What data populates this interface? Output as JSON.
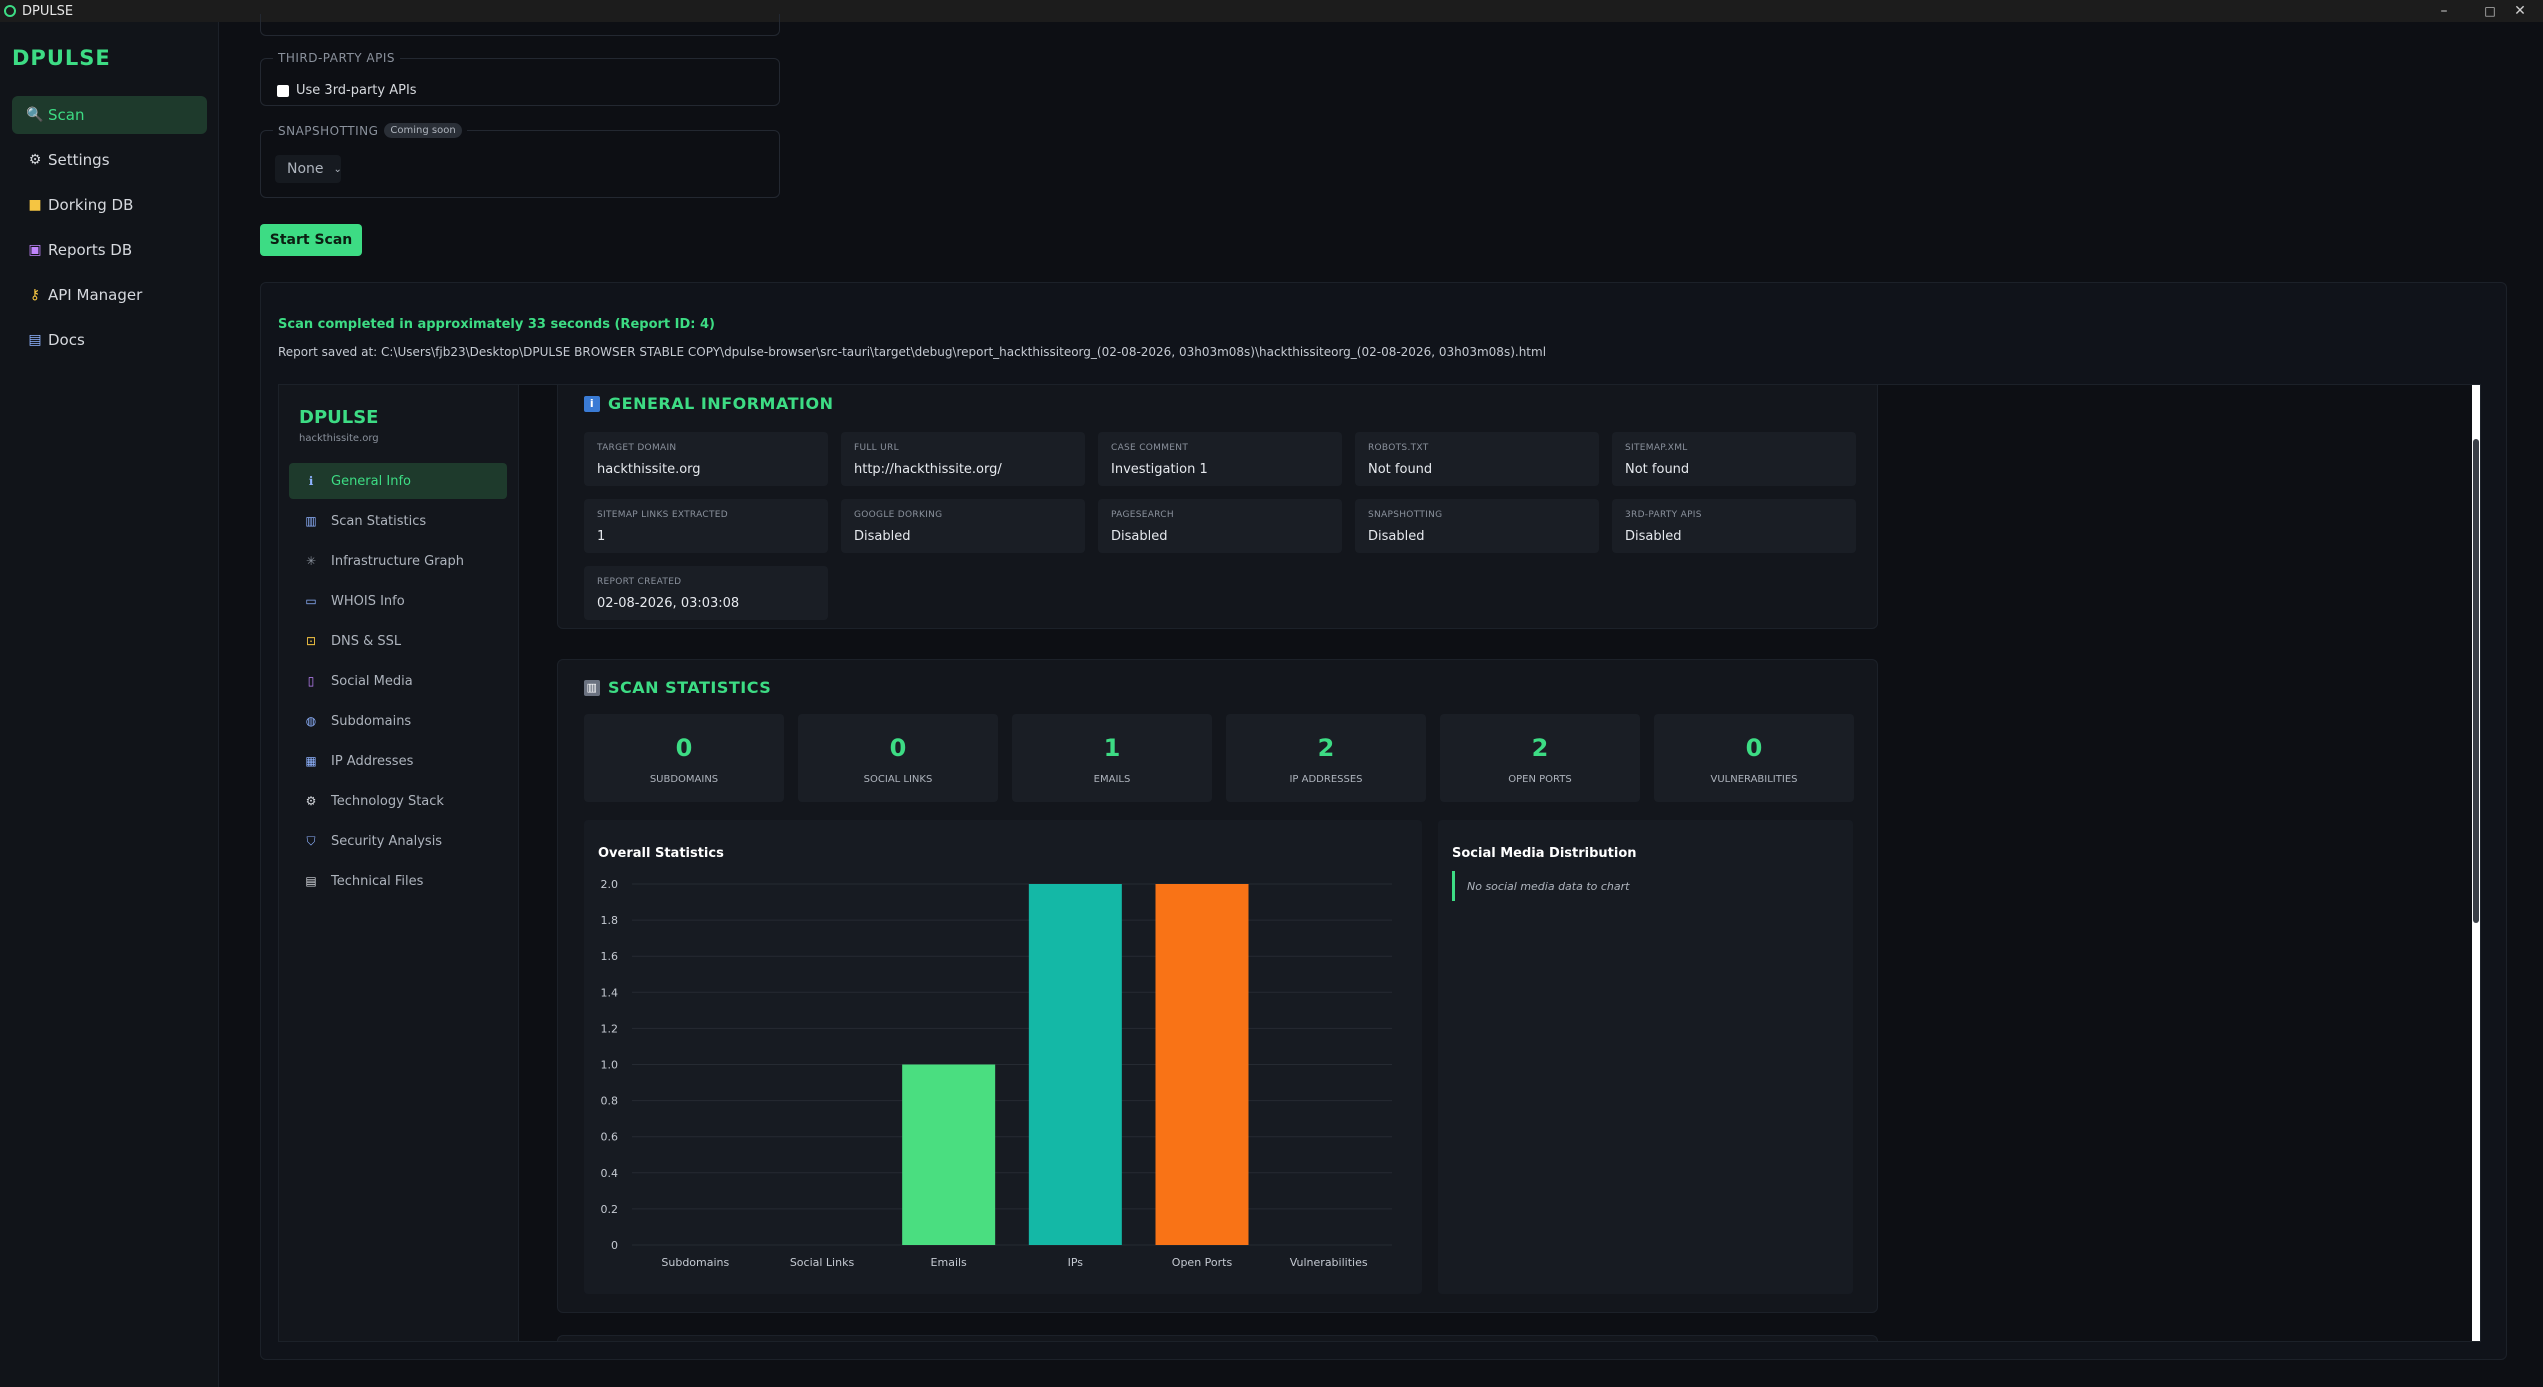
{
  "window": {
    "title": "DPULSE",
    "minimize": "–",
    "maximize": "□",
    "close": "✕"
  },
  "sidebar": {
    "brand": "DPULSE",
    "items": [
      {
        "label": "Scan",
        "icon": "magnifier-icon",
        "active": true
      },
      {
        "label": "Settings",
        "icon": "gear-icon"
      },
      {
        "label": "Dorking DB",
        "icon": "folder-icon"
      },
      {
        "label": "Reports DB",
        "icon": "floppy-icon"
      },
      {
        "label": "API Manager",
        "icon": "key-icon"
      },
      {
        "label": "Docs",
        "icon": "book-icon"
      }
    ]
  },
  "form": {
    "third_party_legend": "THIRD-PARTY APIS",
    "third_party_checkbox": "Use 3rd-party APIs",
    "snapshot_legend": "SNAPSHOTTING",
    "snapshot_badge": "Coming soon",
    "snapshot_value": "None",
    "start_button": "Start Scan"
  },
  "result": {
    "status": "Scan completed in approximately 33 seconds (Report ID: 4)",
    "path": "Report saved at: C:\\Users\\fjb23\\Desktop\\DPULSE BROWSER STABLE COPY\\dpulse-browser\\src-tauri\\target\\debug\\report_hackthissiteorg_(02-08-2026, 03h03m08s)\\hackthissiteorg_(02-08-2026, 03h03m08s).html"
  },
  "report": {
    "brand": "DPULSE",
    "domain": "hackthissite.org",
    "nav": [
      {
        "label": "General Info",
        "icon": "info-icon",
        "active": true
      },
      {
        "label": "Scan Statistics",
        "icon": "chart-icon"
      },
      {
        "label": "Infrastructure Graph",
        "icon": "network-icon"
      },
      {
        "label": "WHOIS Info",
        "icon": "id-card-icon"
      },
      {
        "label": "DNS & SSL",
        "icon": "lock-icon"
      },
      {
        "label": "Social Media",
        "icon": "phone-icon"
      },
      {
        "label": "Subdomains",
        "icon": "globe-icon"
      },
      {
        "label": "IP Addresses",
        "icon": "numbers-icon"
      },
      {
        "label": "Technology Stack",
        "icon": "gear-icon"
      },
      {
        "label": "Security Analysis",
        "icon": "shield-icon"
      },
      {
        "label": "Technical Files",
        "icon": "document-icon"
      }
    ],
    "general": {
      "title": "GENERAL INFORMATION",
      "cards": [
        {
          "label": "TARGET DOMAIN",
          "value": "hackthissite.org"
        },
        {
          "label": "FULL URL",
          "value": "http://hackthissite.org/"
        },
        {
          "label": "CASE COMMENT",
          "value": "Investigation 1"
        },
        {
          "label": "ROBOTS.TXT",
          "value": "Not found"
        },
        {
          "label": "SITEMAP.XML",
          "value": "Not found"
        },
        {
          "label": "SITEMAP LINKS EXTRACTED",
          "value": "1"
        },
        {
          "label": "GOOGLE DORKING",
          "value": "Disabled"
        },
        {
          "label": "PAGESEARCH",
          "value": "Disabled"
        },
        {
          "label": "SNAPSHOTTING",
          "value": "Disabled"
        },
        {
          "label": "3RD-PARTY APIS",
          "value": "Disabled"
        },
        {
          "label": "REPORT CREATED",
          "value": "02-08-2026, 03:03:08"
        }
      ]
    },
    "stats": {
      "title": "SCAN STATISTICS",
      "cards": [
        {
          "value": "0",
          "label": "SUBDOMAINS"
        },
        {
          "value": "0",
          "label": "SOCIAL LINKS"
        },
        {
          "value": "1",
          "label": "EMAILS"
        },
        {
          "value": "2",
          "label": "IP ADDRESSES"
        },
        {
          "value": "2",
          "label": "OPEN PORTS"
        },
        {
          "value": "0",
          "label": "VULNERABILITIES"
        }
      ],
      "social_title": "Social Media Distribution",
      "social_empty": "No social media data to chart"
    }
  },
  "chart_data": {
    "type": "bar",
    "title": "Overall Statistics",
    "categories": [
      "Subdomains",
      "Social Links",
      "Emails",
      "IPs",
      "Open Ports",
      "Vulnerabilities"
    ],
    "values": [
      0,
      0,
      1,
      2,
      2,
      0
    ],
    "colors": [
      "#3ddc84",
      "#3ddc84",
      "#4ade80",
      "#14b8a6",
      "#f97316",
      "#3ddc84"
    ],
    "ylim": [
      0,
      2
    ],
    "yticks": [
      "0",
      "0.2",
      "0.4",
      "0.6",
      "0.8",
      "1.0",
      "1.2",
      "1.4",
      "1.6",
      "1.8",
      "2.0"
    ],
    "grid": true,
    "xlabel": "",
    "ylabel": ""
  }
}
